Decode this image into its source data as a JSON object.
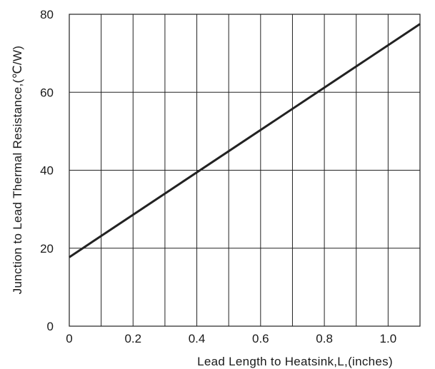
{
  "chart_data": {
    "type": "line",
    "title": "",
    "xlabel": "Lead Length to Heatsink,L,(inches)",
    "ylabel": "Junction to Lead Thermal Resistance,(℃/W)",
    "xlim": [
      0,
      1.1
    ],
    "ylim": [
      0,
      80
    ],
    "grid": true,
    "x_ticks": [
      {
        "value": 0,
        "label": "0"
      },
      {
        "value": 0.2,
        "label": "0.2"
      },
      {
        "value": 0.4,
        "label": "0.4"
      },
      {
        "value": 0.6,
        "label": "0.6"
      },
      {
        "value": 0.8,
        "label": "0.8"
      },
      {
        "value": 1.0,
        "label": "1.0"
      }
    ],
    "y_ticks": [
      {
        "value": 0,
        "label": "0"
      },
      {
        "value": 20,
        "label": "20"
      },
      {
        "value": 40,
        "label": "40"
      },
      {
        "value": 60,
        "label": "60"
      },
      {
        "value": 80,
        "label": "80"
      }
    ],
    "x_grid": [
      0.1,
      0.2,
      0.3,
      0.4,
      0.5,
      0.6,
      0.7,
      0.8,
      0.9,
      1.0
    ],
    "y_grid": [
      20,
      40,
      60
    ],
    "series": [
      {
        "x": [
          0,
          1.1
        ],
        "y": [
          17.7,
          77.5
        ]
      }
    ],
    "colors": {
      "line": "#222222",
      "grid": "#222222",
      "text": "#1a1a1a"
    }
  }
}
